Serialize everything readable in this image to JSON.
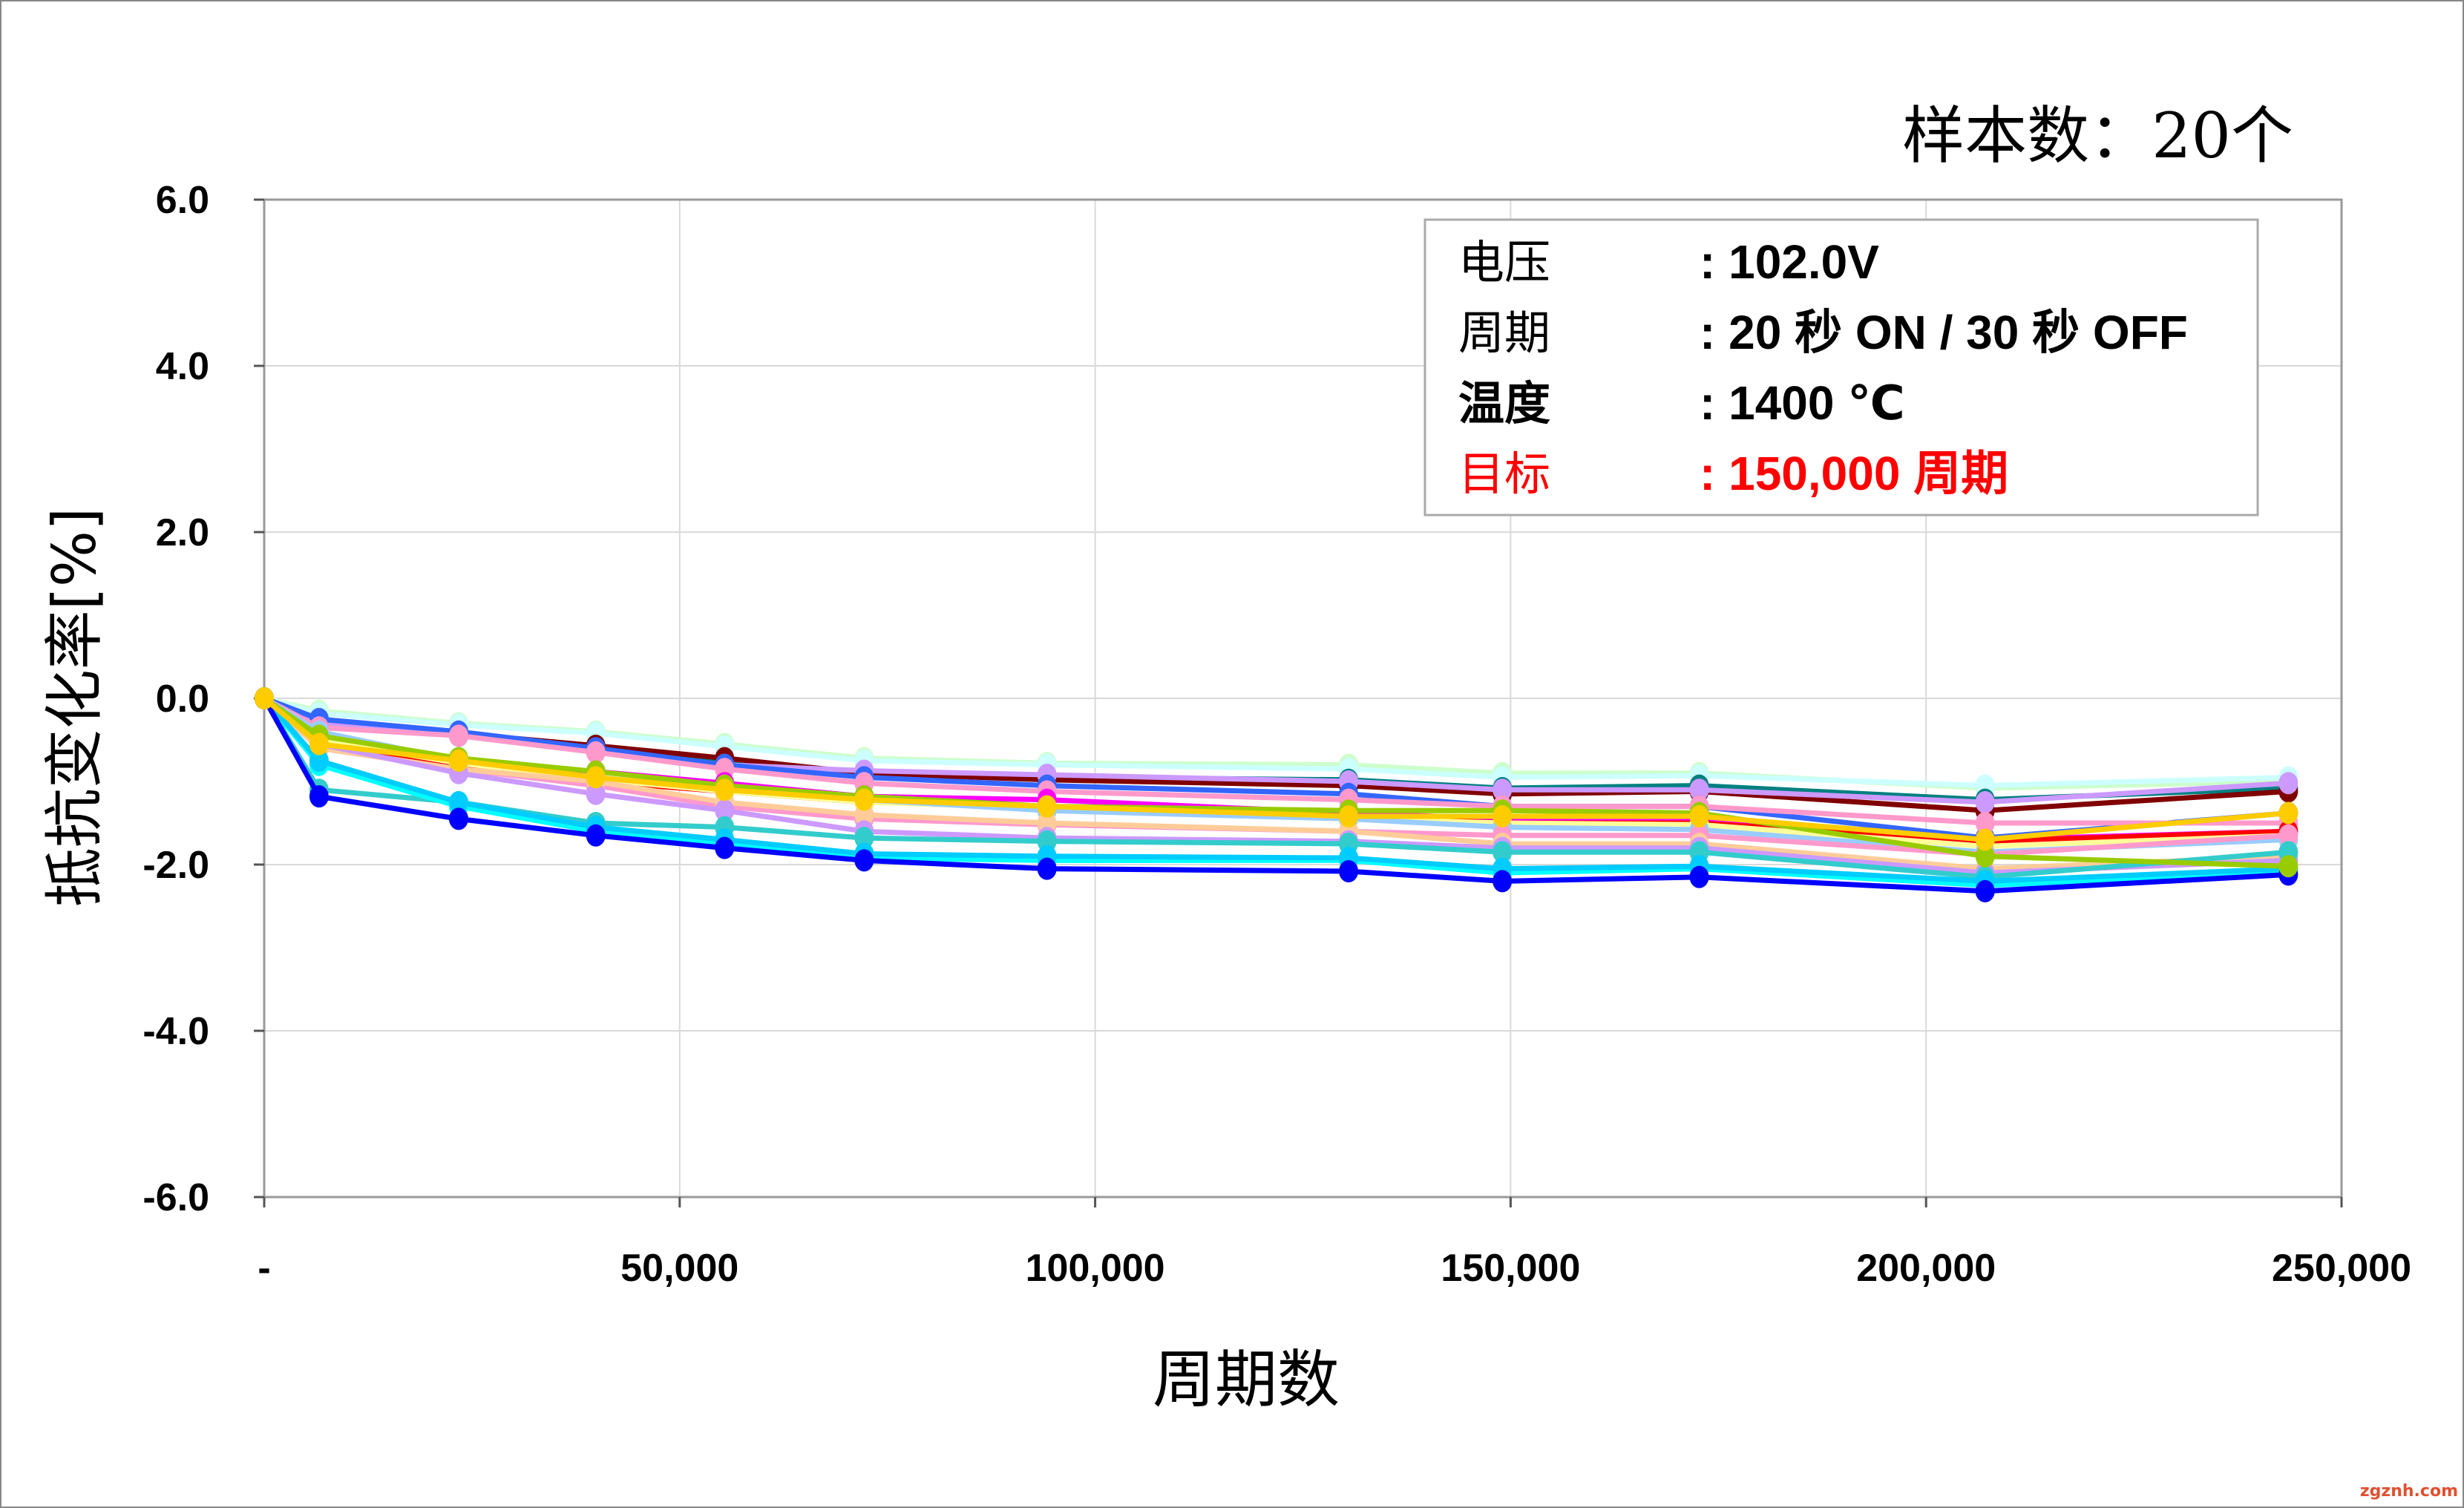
{
  "chart_data": {
    "type": "line",
    "title": "样本数：20个",
    "xlabel": "周期数",
    "ylabel": "抵抗变化率[%]",
    "xlim": [
      0,
      250000
    ],
    "ylim": [
      -6.0,
      6.0
    ],
    "grid": true,
    "x_tick_labels": [
      "-",
      "50,000",
      "100,000",
      "150,000",
      "200,000",
      "250,000"
    ],
    "x_tick_values": [
      0,
      50000,
      100000,
      150000,
      200000,
      250000
    ],
    "y_tick_labels": [
      "6.0",
      "4.0",
      "2.0",
      "0.0",
      "-2.0",
      "-4.0",
      "-6.0"
    ],
    "y_tick_values": [
      6,
      4,
      2,
      0,
      -2,
      -4,
      -6
    ],
    "info_box": [
      {
        "label": "电压",
        "value": ": 102.0V",
        "color": "#000000",
        "bold_label": false
      },
      {
        "label": "周期",
        "value": ": 20 秒 ON / 30 秒 OFF",
        "color": "#000000",
        "bold_label": false
      },
      {
        "label": "温度",
        "value": ": 1400 ℃",
        "color": "#000000",
        "bold_label": true
      },
      {
        "label": "目标",
        "value": ": 150,000 周期",
        "color": "#FF0000",
        "bold_label": false
      }
    ],
    "watermark": "zgznh.com",
    "x": [
      0,
      6600,
      23400,
      39900,
      55400,
      72200,
      94200,
      130500,
      149000,
      172700,
      207100,
      243600
    ],
    "series": [
      {
        "color": "#CCFFCC",
        "values": [
          0,
          -0.15,
          -0.3,
          -0.4,
          -0.55,
          -0.72,
          -0.78,
          -0.8,
          -0.9,
          -0.9,
          -1.08,
          -1.0
        ]
      },
      {
        "color": "#CCFFFF",
        "values": [
          0,
          -0.18,
          -0.32,
          -0.42,
          -0.58,
          -0.75,
          -0.8,
          -0.85,
          -0.95,
          -0.93,
          -1.05,
          -0.95
        ]
      },
      {
        "color": "#008080",
        "values": [
          0,
          -0.25,
          -0.45,
          -0.6,
          -0.75,
          -0.9,
          -0.95,
          -0.98,
          -1.08,
          -1.05,
          -1.22,
          -1.08
        ]
      },
      {
        "color": "#800000",
        "values": [
          0,
          -0.25,
          -0.42,
          -0.57,
          -0.72,
          -0.9,
          -0.98,
          -1.05,
          -1.15,
          -1.12,
          -1.35,
          -1.12
        ]
      },
      {
        "color": "#CC99FF",
        "values": [
          0,
          -0.3,
          -0.45,
          -0.62,
          -0.8,
          -0.87,
          -0.92,
          -1.0,
          -1.1,
          -1.1,
          -1.25,
          -1.02
        ]
      },
      {
        "color": "#3366FF",
        "values": [
          0,
          -0.25,
          -0.4,
          -0.6,
          -0.8,
          -0.95,
          -1.05,
          -1.15,
          -1.3,
          -1.3,
          -1.68,
          -1.38
        ]
      },
      {
        "color": "#FF99CC",
        "values": [
          0,
          -0.35,
          -0.45,
          -0.65,
          -0.85,
          -1.02,
          -1.12,
          -1.22,
          -1.3,
          -1.3,
          -1.5,
          -1.5
        ]
      },
      {
        "color": "#FF00FF",
        "values": [
          0,
          -0.5,
          -0.75,
          -0.88,
          -1.02,
          -1.18,
          -1.22,
          -1.38,
          -1.45,
          -1.45,
          -1.7,
          -1.6
        ]
      },
      {
        "color": "#FF0000",
        "values": [
          0,
          -0.55,
          -0.8,
          -1.0,
          -1.12,
          -1.25,
          -1.3,
          -1.42,
          -1.5,
          -1.5,
          -1.72,
          -1.6
        ]
      },
      {
        "color": "#FFFF99",
        "values": [
          0,
          -0.5,
          -0.78,
          -0.97,
          -1.12,
          -1.25,
          -1.32,
          -1.45,
          -1.5,
          -1.52,
          -1.78,
          -1.65
        ]
      },
      {
        "color": "#99CCFF",
        "values": [
          0,
          -0.4,
          -0.75,
          -0.95,
          -1.1,
          -1.22,
          -1.35,
          -1.45,
          -1.55,
          -1.58,
          -1.85,
          -1.7
        ]
      },
      {
        "color": "#FF99CC",
        "values": [
          0,
          -0.6,
          -0.85,
          -1.05,
          -1.3,
          -1.45,
          -1.52,
          -1.6,
          -1.65,
          -1.65,
          -1.88,
          -1.65
        ]
      },
      {
        "color": "#FFCC99",
        "values": [
          0,
          -0.6,
          -0.85,
          -1.0,
          -1.25,
          -1.4,
          -1.5,
          -1.6,
          -1.75,
          -1.75,
          -2.05,
          -1.9
        ]
      },
      {
        "color": "#CC99FF",
        "values": [
          0,
          -0.55,
          -0.9,
          -1.15,
          -1.35,
          -1.6,
          -1.68,
          -1.72,
          -1.8,
          -1.8,
          -2.1,
          -1.95
        ]
      },
      {
        "color": "#33CCCC",
        "values": [
          0,
          -1.1,
          -1.25,
          -1.5,
          -1.55,
          -1.68,
          -1.72,
          -1.75,
          -1.85,
          -1.85,
          -2.15,
          -1.85
        ]
      },
      {
        "color": "#00FFFF",
        "values": [
          0,
          -0.8,
          -1.3,
          -1.6,
          -1.75,
          -1.92,
          -1.95,
          -1.95,
          -2.1,
          -2.05,
          -2.25,
          -2.1
        ]
      },
      {
        "color": "#00CCFF",
        "values": [
          0,
          -0.75,
          -1.25,
          -1.55,
          -1.7,
          -1.87,
          -1.9,
          -1.92,
          -2.05,
          -2.02,
          -2.2,
          -2.05
        ]
      },
      {
        "color": "#0000FF",
        "values": [
          0,
          -1.18,
          -1.45,
          -1.65,
          -1.8,
          -1.95,
          -2.05,
          -2.08,
          -2.2,
          -2.15,
          -2.32,
          -2.12
        ]
      },
      {
        "color": "#99CC00",
        "values": [
          0,
          -0.45,
          -0.72,
          -0.88,
          -1.05,
          -1.18,
          -1.3,
          -1.35,
          -1.35,
          -1.38,
          -1.9,
          -2.02
        ]
      },
      {
        "color": "#FFCC00",
        "values": [
          0,
          -0.55,
          -0.75,
          -0.95,
          -1.1,
          -1.22,
          -1.3,
          -1.42,
          -1.42,
          -1.42,
          -1.7,
          -1.38
        ]
      }
    ]
  }
}
